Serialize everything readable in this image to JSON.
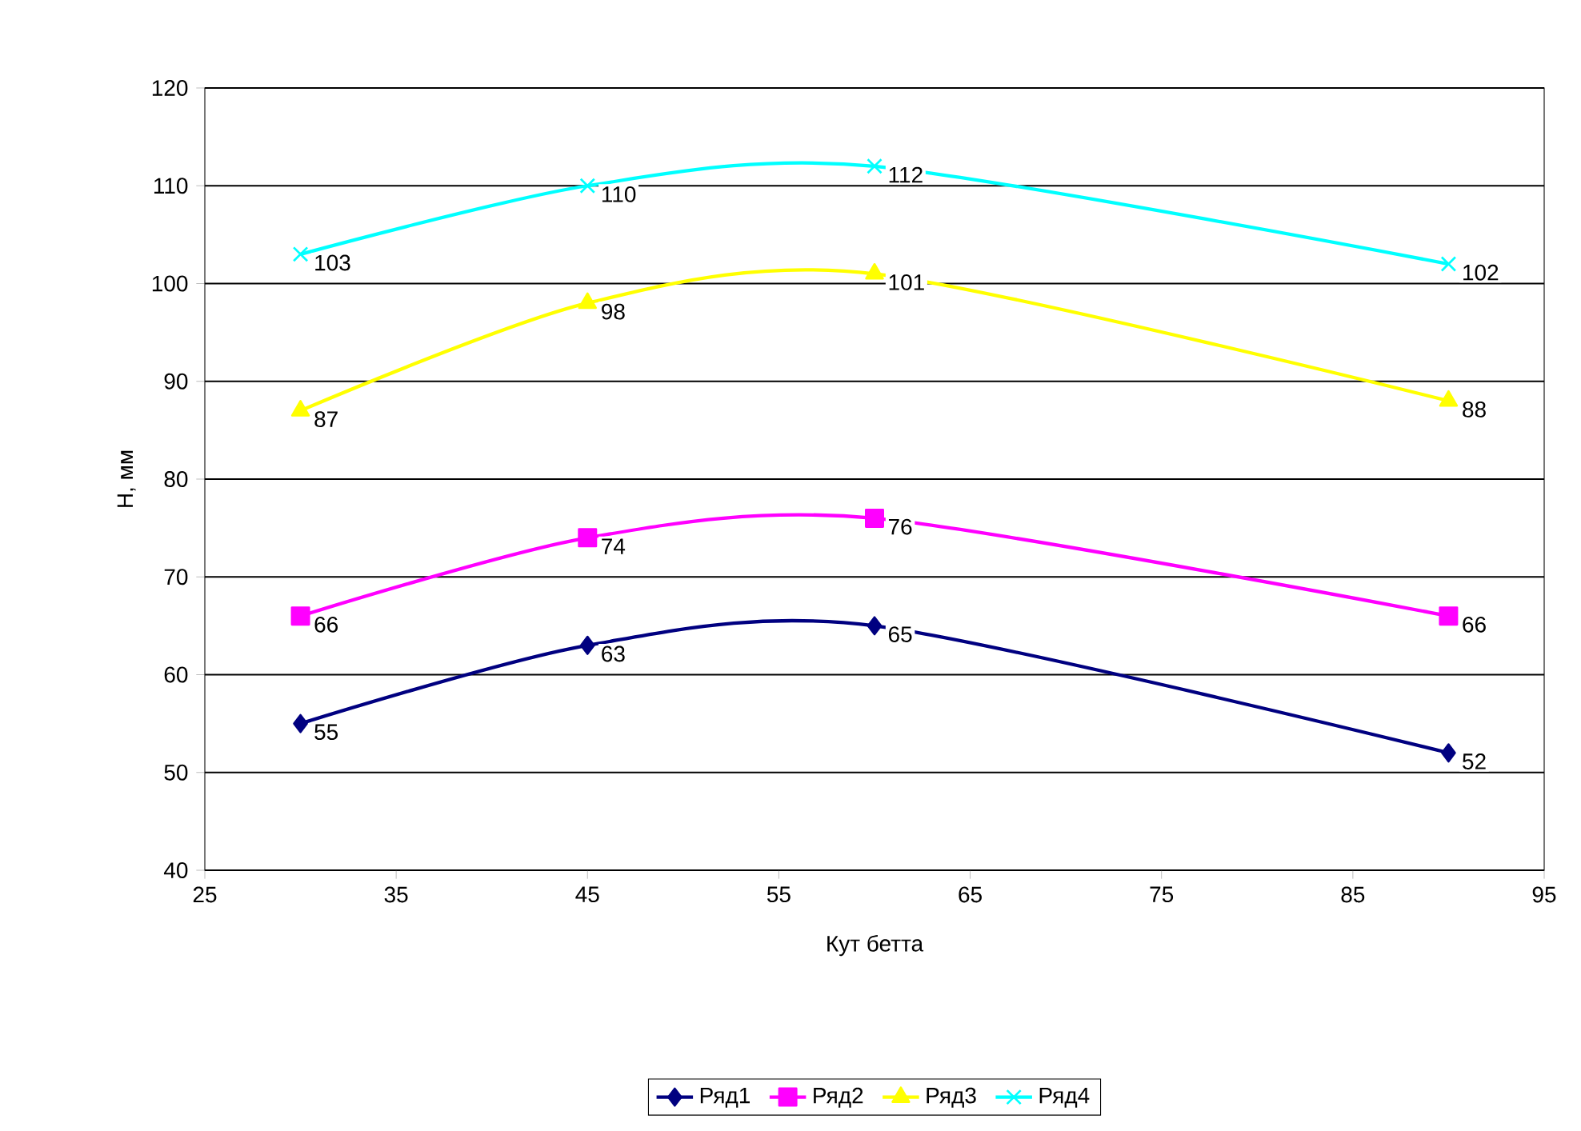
{
  "chart_data": {
    "type": "line",
    "xlabel": "Кут бетта",
    "ylabel": "Н, мм",
    "x": [
      30,
      45,
      60,
      90
    ],
    "series": [
      {
        "name": "Ряд1",
        "color": "#000080",
        "marker": "diamond",
        "values": [
          55,
          63,
          65,
          52
        ]
      },
      {
        "name": "Ряд2",
        "color": "#ff00ff",
        "marker": "square",
        "values": [
          66,
          74,
          76,
          66
        ]
      },
      {
        "name": "Ряд3",
        "color": "#ffff00",
        "marker": "triangle",
        "values": [
          87,
          98,
          101,
          88
        ]
      },
      {
        "name": "Ряд4",
        "color": "#00ffff",
        "marker": "cross",
        "values": [
          103,
          110,
          112,
          102
        ]
      }
    ],
    "xlim": [
      25,
      95
    ],
    "xticks": [
      25,
      35,
      45,
      55,
      65,
      75,
      85,
      95
    ],
    "ylim": [
      40,
      120
    ],
    "yticks": [
      40,
      50,
      60,
      70,
      80,
      90,
      100,
      110,
      120
    ],
    "grid": "y",
    "legend": "bottom",
    "data_labels": true
  }
}
